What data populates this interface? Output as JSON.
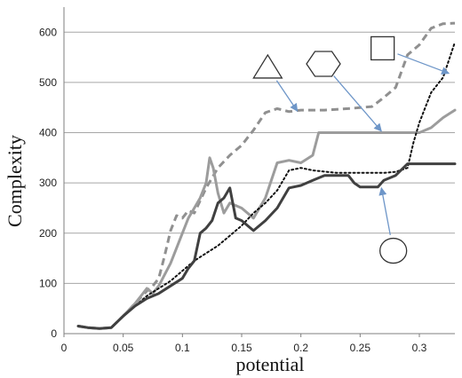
{
  "chart_data": {
    "type": "line",
    "title": "",
    "xlabel": "potential",
    "ylabel": "Complexity",
    "xlim": [
      0,
      0.33
    ],
    "ylim": [
      0,
      650
    ],
    "grid": true,
    "x_ticks": [
      0,
      0.05,
      0.1,
      0.15,
      0.2,
      0.25,
      0.3
    ],
    "x_tick_labels": [
      "0",
      "0.05",
      "0.1",
      "0.15",
      "0.2",
      "0.25",
      "0.3"
    ],
    "y_ticks": [
      0,
      100,
      200,
      300,
      400,
      500,
      600
    ],
    "y_tick_labels": [
      "0",
      "100",
      "200",
      "300",
      "400",
      "500",
      "600"
    ],
    "colors": {
      "grid": "#a6a6a6",
      "axis": "#7f7f7f",
      "series_triangle": "#909090",
      "series_hexagon": "#9c9c9c",
      "series_square": "#111111",
      "series_circle": "#404040",
      "annotation_arrow": "#6e96c8",
      "shape_stroke": "#333333"
    },
    "series": [
      {
        "marker_shape": "triangle",
        "style": "dashed",
        "points": [
          [
            0.012,
            15
          ],
          [
            0.02,
            12
          ],
          [
            0.03,
            10
          ],
          [
            0.04,
            12
          ],
          [
            0.05,
            35
          ],
          [
            0.06,
            60
          ],
          [
            0.07,
            85
          ],
          [
            0.075,
            95
          ],
          [
            0.08,
            110
          ],
          [
            0.085,
            155
          ],
          [
            0.09,
            205
          ],
          [
            0.095,
            235
          ],
          [
            0.1,
            230
          ],
          [
            0.105,
            245
          ],
          [
            0.11,
            240
          ],
          [
            0.12,
            290
          ],
          [
            0.13,
            330
          ],
          [
            0.14,
            355
          ],
          [
            0.15,
            375
          ],
          [
            0.16,
            405
          ],
          [
            0.17,
            440
          ],
          [
            0.18,
            448
          ],
          [
            0.19,
            442
          ],
          [
            0.2,
            445
          ],
          [
            0.22,
            445
          ],
          [
            0.24,
            448
          ],
          [
            0.26,
            452
          ],
          [
            0.27,
            470
          ],
          [
            0.28,
            490
          ],
          [
            0.29,
            555
          ],
          [
            0.3,
            575
          ],
          [
            0.31,
            608
          ],
          [
            0.32,
            617
          ],
          [
            0.33,
            618
          ]
        ]
      },
      {
        "marker_shape": "hexagon",
        "style": "solid",
        "points": [
          [
            0.012,
            15
          ],
          [
            0.02,
            12
          ],
          [
            0.03,
            10
          ],
          [
            0.04,
            12
          ],
          [
            0.05,
            35
          ],
          [
            0.06,
            60
          ],
          [
            0.065,
            75
          ],
          [
            0.07,
            90
          ],
          [
            0.075,
            80
          ],
          [
            0.08,
            95
          ],
          [
            0.09,
            140
          ],
          [
            0.1,
            200
          ],
          [
            0.105,
            230
          ],
          [
            0.11,
            250
          ],
          [
            0.115,
            270
          ],
          [
            0.12,
            300
          ],
          [
            0.123,
            350
          ],
          [
            0.126,
            330
          ],
          [
            0.13,
            280
          ],
          [
            0.135,
            240
          ],
          [
            0.14,
            260
          ],
          [
            0.15,
            250
          ],
          [
            0.16,
            230
          ],
          [
            0.17,
            270
          ],
          [
            0.18,
            340
          ],
          [
            0.19,
            345
          ],
          [
            0.2,
            340
          ],
          [
            0.21,
            355
          ],
          [
            0.215,
            400
          ],
          [
            0.23,
            400
          ],
          [
            0.25,
            400
          ],
          [
            0.28,
            400
          ],
          [
            0.3,
            400
          ],
          [
            0.31,
            410
          ],
          [
            0.32,
            430
          ],
          [
            0.33,
            445
          ]
        ]
      },
      {
        "marker_shape": "square",
        "style": "dotted",
        "points": [
          [
            0.012,
            15
          ],
          [
            0.02,
            12
          ],
          [
            0.03,
            10
          ],
          [
            0.04,
            12
          ],
          [
            0.05,
            35
          ],
          [
            0.06,
            55
          ],
          [
            0.07,
            75
          ],
          [
            0.08,
            90
          ],
          [
            0.09,
            105
          ],
          [
            0.1,
            125
          ],
          [
            0.11,
            145
          ],
          [
            0.12,
            160
          ],
          [
            0.13,
            175
          ],
          [
            0.14,
            195
          ],
          [
            0.15,
            215
          ],
          [
            0.16,
            240
          ],
          [
            0.17,
            260
          ],
          [
            0.18,
            285
          ],
          [
            0.19,
            325
          ],
          [
            0.2,
            330
          ],
          [
            0.21,
            325
          ],
          [
            0.23,
            320
          ],
          [
            0.25,
            320
          ],
          [
            0.27,
            320
          ],
          [
            0.28,
            322
          ],
          [
            0.29,
            330
          ],
          [
            0.295,
            380
          ],
          [
            0.3,
            420
          ],
          [
            0.31,
            480
          ],
          [
            0.32,
            510
          ],
          [
            0.33,
            580
          ]
        ]
      },
      {
        "marker_shape": "circle",
        "style": "solid",
        "points": [
          [
            0.012,
            15
          ],
          [
            0.02,
            12
          ],
          [
            0.03,
            10
          ],
          [
            0.04,
            12
          ],
          [
            0.05,
            35
          ],
          [
            0.06,
            55
          ],
          [
            0.07,
            70
          ],
          [
            0.08,
            80
          ],
          [
            0.09,
            95
          ],
          [
            0.1,
            110
          ],
          [
            0.105,
            130
          ],
          [
            0.11,
            145
          ],
          [
            0.115,
            200
          ],
          [
            0.12,
            210
          ],
          [
            0.125,
            225
          ],
          [
            0.13,
            260
          ],
          [
            0.135,
            270
          ],
          [
            0.14,
            290
          ],
          [
            0.145,
            230
          ],
          [
            0.15,
            225
          ],
          [
            0.16,
            205
          ],
          [
            0.17,
            225
          ],
          [
            0.18,
            250
          ],
          [
            0.19,
            290
          ],
          [
            0.2,
            295
          ],
          [
            0.21,
            305
          ],
          [
            0.22,
            315
          ],
          [
            0.24,
            315
          ],
          [
            0.245,
            300
          ],
          [
            0.25,
            292
          ],
          [
            0.265,
            292
          ],
          [
            0.27,
            305
          ],
          [
            0.28,
            315
          ],
          [
            0.29,
            338
          ],
          [
            0.31,
            338
          ],
          [
            0.33,
            338
          ]
        ]
      }
    ],
    "annotations": [
      {
        "shape": "triangle",
        "label_x": 0.172,
        "label_y": 530,
        "target_x": 0.197,
        "target_y": 443
      },
      {
        "shape": "hexagon",
        "label_x": 0.219,
        "label_y": 537,
        "target_x": 0.268,
        "target_y": 403
      },
      {
        "shape": "square",
        "label_x": 0.269,
        "label_y": 568,
        "target_x": 0.325,
        "target_y": 518
      },
      {
        "shape": "circle",
        "label_x": 0.278,
        "label_y": 165,
        "target_x": 0.268,
        "target_y": 290
      }
    ]
  }
}
